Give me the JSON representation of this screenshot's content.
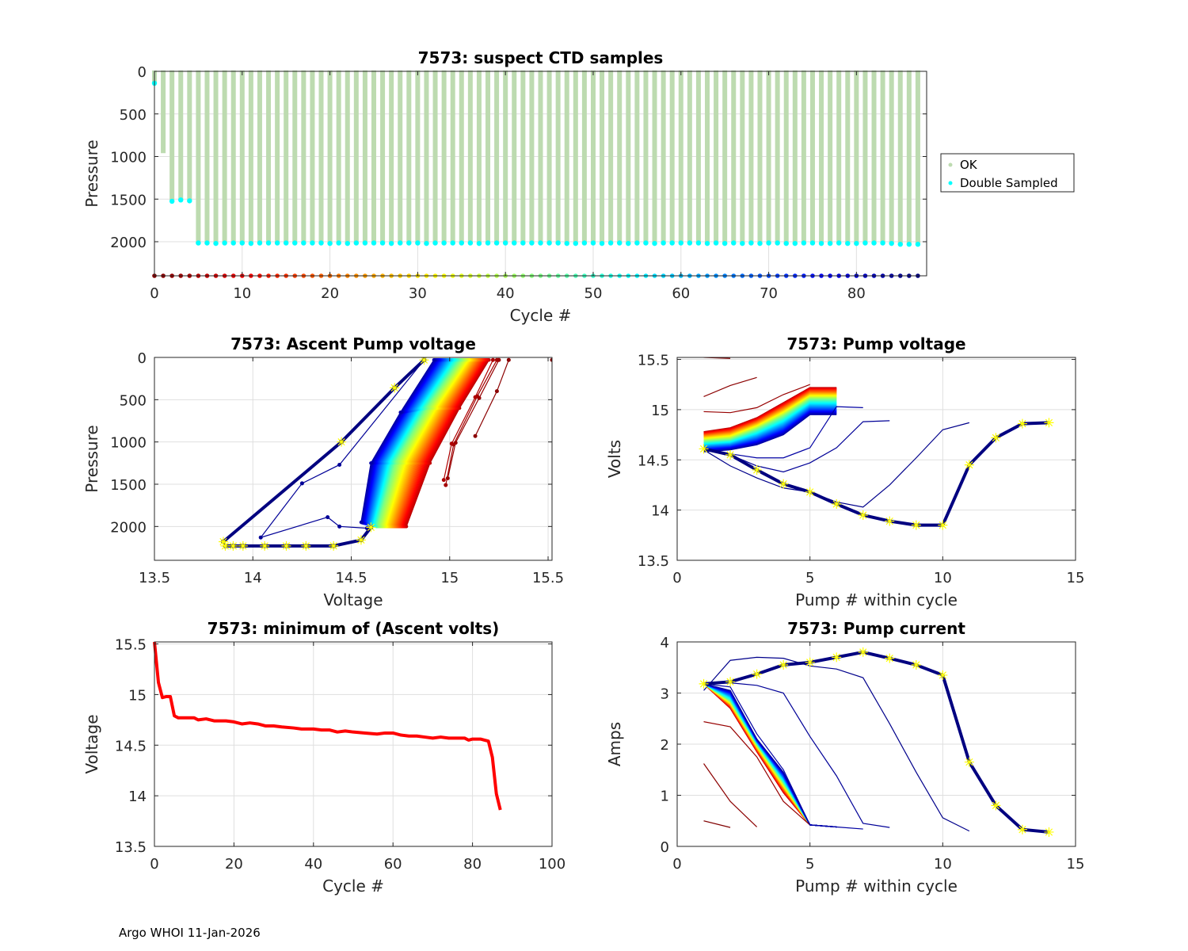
{
  "footer": "Argo WHOI 11-Jan-2026",
  "chart_data": [
    {
      "id": "suspect-ctd",
      "type": "bar",
      "title": "7573: suspect CTD samples",
      "xlabel": "Cycle #",
      "ylabel": "Pressure",
      "xlim": [
        0,
        88
      ],
      "ylim": [
        0,
        2400
      ],
      "y_reversed": true,
      "xticks": [
        0,
        10,
        20,
        30,
        40,
        50,
        60,
        70,
        80
      ],
      "yticks": [
        0,
        500,
        1000,
        1500,
        2000
      ],
      "grid": true,
      "legend": {
        "position": "outside-right",
        "entries": [
          {
            "label": "OK",
            "color": "#bddbb0"
          },
          {
            "label": "Double Sampled",
            "color": "#00ffff"
          }
        ]
      },
      "colors": {
        "ok": "#bddbb0",
        "double_sampled": "#00ffff"
      },
      "profile_max_pressure": [
        140,
        960,
        1525,
        1510,
        1520,
        2015,
        2015,
        2020,
        2015,
        2015,
        2015,
        2020,
        2015,
        2015,
        2015,
        2015,
        2015,
        2015,
        2015,
        2015,
        2020,
        2015,
        2020,
        2015,
        2015,
        2015,
        2015,
        2020,
        2015,
        2015,
        2015,
        2020,
        2015,
        2015,
        2015,
        2015,
        2015,
        2020,
        2015,
        2015,
        2015,
        2015,
        2015,
        2015,
        2015,
        2015,
        2015,
        2020,
        2020,
        2015,
        2015,
        2020,
        2015,
        2015,
        2020,
        2015,
        2015,
        2020,
        2015,
        2015,
        2015,
        2015,
        2015,
        2020,
        2015,
        2020,
        2015,
        2020,
        2015,
        2020,
        2015,
        2015,
        2020,
        2020,
        2015,
        2015,
        2020,
        2020,
        2015,
        2020,
        2020,
        2015,
        2015,
        2015,
        2020,
        2030,
        2030,
        2030
      ],
      "double_sampled_cycles_excluded": [
        1
      ],
      "cycle_marker_pressure": 2400,
      "cycle_marker_colormap": "jet-reversed"
    },
    {
      "id": "ascent-pump-voltage",
      "type": "line",
      "title": "7573: Ascent Pump voltage",
      "xlabel": "Voltage",
      "ylabel": "Pressure",
      "xlim": [
        13.5,
        15.52
      ],
      "ylim": [
        0,
        2400
      ],
      "y_reversed": true,
      "xticks": [
        13.5,
        14,
        14.5,
        15,
        15.5
      ],
      "yticks": [
        0,
        500,
        1000,
        1500,
        2000
      ],
      "grid": true,
      "colormap": "jet-reversed",
      "series": [
        {
          "name": "cycle-0",
          "x": [
            15.52,
            15.53
          ],
          "y": [
            30,
            140
          ]
        },
        {
          "name": "cycle-1",
          "x": [
            15.3,
            15.24,
            15.13
          ],
          "y": [
            30,
            400,
            930
          ]
        },
        {
          "name": "cycle-2",
          "x": [
            15.25,
            15.15,
            15.03,
            14.99
          ],
          "y": [
            30,
            480,
            1010,
            1430
          ]
        },
        {
          "name": "cycle-3",
          "x": [
            15.24,
            15.14,
            15.02,
            14.98
          ],
          "y": [
            30,
            460,
            1030,
            1510
          ]
        },
        {
          "name": "cycle-4",
          "x": [
            15.22,
            15.13,
            15.01,
            14.97
          ],
          "y": [
            30,
            470,
            1020,
            1450
          ]
        },
        {
          "name": "early-band",
          "x": [
            15.2,
            15.05,
            14.9,
            14.78
          ],
          "y": [
            30,
            600,
            1250,
            2000
          ]
        },
        {
          "name": "mid-band",
          "x": [
            15.05,
            14.88,
            14.72,
            14.63
          ],
          "y": [
            30,
            600,
            1250,
            2000
          ]
        },
        {
          "name": "late-band",
          "x": [
            14.92,
            14.75,
            14.6,
            14.55
          ],
          "y": [
            30,
            650,
            1250,
            1950
          ]
        },
        {
          "name": "cycle-85",
          "x": [
            14.87,
            14.44,
            14.25,
            14.04,
            14.38,
            14.44,
            14.58
          ],
          "y": [
            30,
            1270,
            1490,
            2130,
            1890,
            2000,
            2020
          ]
        },
        {
          "name": "cycle-87",
          "x": [
            14.87,
            14.72,
            14.45,
            13.85,
            13.86,
            13.9,
            13.95,
            14.06,
            14.17,
            14.27,
            14.41,
            14.55,
            14.6
          ],
          "y": [
            30,
            360,
            1000,
            2180,
            2230,
            2230,
            2230,
            2230,
            2230,
            2230,
            2230,
            2160,
            2010
          ]
        }
      ],
      "highlight_markers": "yellow-asterisk on last cycle"
    },
    {
      "id": "pump-voltage",
      "type": "line",
      "title": "7573: Pump voltage",
      "xlabel": "Pump # within cycle",
      "ylabel": "Volts",
      "xlim": [
        0,
        15
      ],
      "ylim": [
        13.5,
        15.52
      ],
      "xticks": [
        0,
        5,
        10,
        15
      ],
      "yticks": [
        13.5,
        14,
        14.5,
        15,
        15.5
      ],
      "grid": true,
      "colormap": "jet-reversed",
      "series": [
        {
          "name": "cycle-0",
          "x": [
            1,
            2
          ],
          "y": [
            15.52,
            15.51
          ]
        },
        {
          "name": "cycle-1",
          "x": [
            1,
            2,
            3
          ],
          "y": [
            15.13,
            15.24,
            15.32
          ]
        },
        {
          "name": "cycle-2",
          "x": [
            1,
            2,
            3,
            4,
            5
          ],
          "y": [
            14.98,
            14.97,
            15.02,
            15.15,
            15.25
          ]
        },
        {
          "name": "early-band",
          "x": [
            1,
            2,
            3,
            4,
            5,
            6
          ],
          "y": [
            14.78,
            14.82,
            14.92,
            15.07,
            15.22,
            15.22
          ]
        },
        {
          "name": "mid-band",
          "x": [
            1,
            2,
            3,
            4,
            5,
            6
          ],
          "y": [
            14.68,
            14.7,
            14.8,
            14.93,
            15.1,
            15.1
          ]
        },
        {
          "name": "late-band",
          "x": [
            1,
            2,
            3,
            4,
            5,
            6
          ],
          "y": [
            14.58,
            14.6,
            14.65,
            14.75,
            14.95,
            14.95
          ]
        },
        {
          "name": "cycle-84",
          "x": [
            1,
            2,
            3,
            4,
            5,
            6,
            7
          ],
          "y": [
            14.6,
            14.56,
            14.52,
            14.52,
            14.62,
            15.03,
            15.02
          ]
        },
        {
          "name": "cycle-85",
          "x": [
            1,
            2,
            3,
            4,
            5,
            6,
            7,
            8
          ],
          "y": [
            14.6,
            14.55,
            14.44,
            14.38,
            14.47,
            14.62,
            14.88,
            14.89
          ]
        },
        {
          "name": "cycle-86",
          "x": [
            1,
            2,
            3,
            4,
            5,
            6,
            7,
            8,
            9,
            10,
            11
          ],
          "y": [
            14.6,
            14.44,
            14.32,
            14.22,
            14.18,
            14.08,
            14.03,
            14.25,
            14.52,
            14.8,
            14.87
          ]
        },
        {
          "name": "cycle-87",
          "x": [
            1,
            2,
            3,
            4,
            5,
            6,
            7,
            8,
            9,
            10,
            11,
            12,
            13,
            14
          ],
          "y": [
            14.61,
            14.55,
            14.4,
            14.26,
            14.18,
            14.06,
            13.95,
            13.89,
            13.85,
            13.85,
            14.45,
            14.72,
            14.86,
            14.87
          ]
        }
      ]
    },
    {
      "id": "min-ascent-volts",
      "type": "line",
      "title": "7573: minimum of (Ascent volts)",
      "xlabel": "Cycle #",
      "ylabel": "Voltage",
      "xlim": [
        0,
        100
      ],
      "ylim": [
        13.5,
        15.52
      ],
      "xticks": [
        0,
        20,
        40,
        60,
        80,
        100
      ],
      "yticks": [
        13.5,
        14,
        14.5,
        15,
        15.5
      ],
      "grid": true,
      "color": "#ff0000",
      "x": [
        0,
        1,
        2,
        3,
        4,
        5,
        6,
        8,
        10,
        11,
        13,
        15,
        18,
        20,
        22,
        24,
        26,
        28,
        30,
        32,
        35,
        37,
        40,
        42,
        44,
        46,
        48,
        50,
        53,
        56,
        58,
        60,
        62,
        64,
        66,
        68,
        70,
        72,
        74,
        76,
        78,
        79,
        80,
        82,
        84,
        85,
        86,
        87
      ],
      "y": [
        15.52,
        15.12,
        14.97,
        14.98,
        14.98,
        14.79,
        14.77,
        14.77,
        14.77,
        14.75,
        14.76,
        14.74,
        14.74,
        14.73,
        14.71,
        14.72,
        14.71,
        14.69,
        14.69,
        14.68,
        14.67,
        14.66,
        14.66,
        14.65,
        14.65,
        14.63,
        14.64,
        14.63,
        14.62,
        14.61,
        14.62,
        14.62,
        14.6,
        14.59,
        14.59,
        14.58,
        14.57,
        14.58,
        14.57,
        14.57,
        14.57,
        14.55,
        14.56,
        14.56,
        14.54,
        14.38,
        14.02,
        13.86
      ]
    },
    {
      "id": "pump-current",
      "type": "line",
      "title": "7573: Pump current",
      "xlabel": "Pump # within cycle",
      "ylabel": "Amps",
      "xlim": [
        0,
        15
      ],
      "ylim": [
        0,
        4
      ],
      "xticks": [
        0,
        5,
        10,
        15
      ],
      "yticks": [
        0,
        1,
        2,
        3,
        4
      ],
      "grid": true,
      "colormap": "jet-reversed",
      "series": [
        {
          "name": "cycle-0",
          "x": [
            1,
            2
          ],
          "y": [
            0.5,
            0.37
          ]
        },
        {
          "name": "cycle-1",
          "x": [
            1,
            2,
            3
          ],
          "y": [
            1.62,
            0.88,
            0.38
          ]
        },
        {
          "name": "cycle-2",
          "x": [
            1,
            2,
            3,
            4,
            5
          ],
          "y": [
            2.44,
            2.34,
            1.75,
            0.88,
            0.42
          ]
        },
        {
          "name": "early-band",
          "x": [
            1,
            2,
            3,
            4,
            5,
            6
          ],
          "y": [
            3.18,
            2.7,
            1.85,
            1.05,
            0.42,
            0.38
          ]
        },
        {
          "name": "mid-band",
          "x": [
            1,
            2,
            3,
            4,
            5,
            6
          ],
          "y": [
            3.18,
            2.85,
            2.0,
            1.25,
            0.42,
            0.38
          ]
        },
        {
          "name": "late-band",
          "x": [
            1,
            2,
            3,
            4,
            5,
            6
          ],
          "y": [
            3.18,
            3.05,
            2.1,
            1.45,
            0.42,
            0.38
          ]
        },
        {
          "name": "cycle-84",
          "x": [
            1,
            2,
            3,
            4,
            5,
            6,
            7
          ],
          "y": [
            3.18,
            3.12,
            2.2,
            1.5,
            0.42,
            0.38,
            0.34
          ]
        },
        {
          "name": "cycle-85",
          "x": [
            1,
            2,
            3,
            4,
            5,
            6,
            7,
            8
          ],
          "y": [
            3.18,
            3.2,
            3.15,
            3.0,
            2.15,
            1.38,
            0.45,
            0.37
          ]
        },
        {
          "name": "cycle-86",
          "x": [
            1,
            2,
            3,
            4,
            5,
            6,
            7,
            8,
            9,
            10,
            11
          ],
          "y": [
            3.05,
            3.64,
            3.7,
            3.68,
            3.53,
            3.47,
            3.3,
            2.4,
            1.45,
            0.56,
            0.3
          ]
        },
        {
          "name": "cycle-87",
          "x": [
            1,
            2,
            3,
            4,
            5,
            6,
            7,
            8,
            9,
            10,
            11,
            12,
            13,
            14
          ],
          "y": [
            3.18,
            3.22,
            3.37,
            3.55,
            3.6,
            3.7,
            3.8,
            3.68,
            3.55,
            3.35,
            1.65,
            0.8,
            0.33,
            0.28
          ]
        }
      ]
    }
  ]
}
